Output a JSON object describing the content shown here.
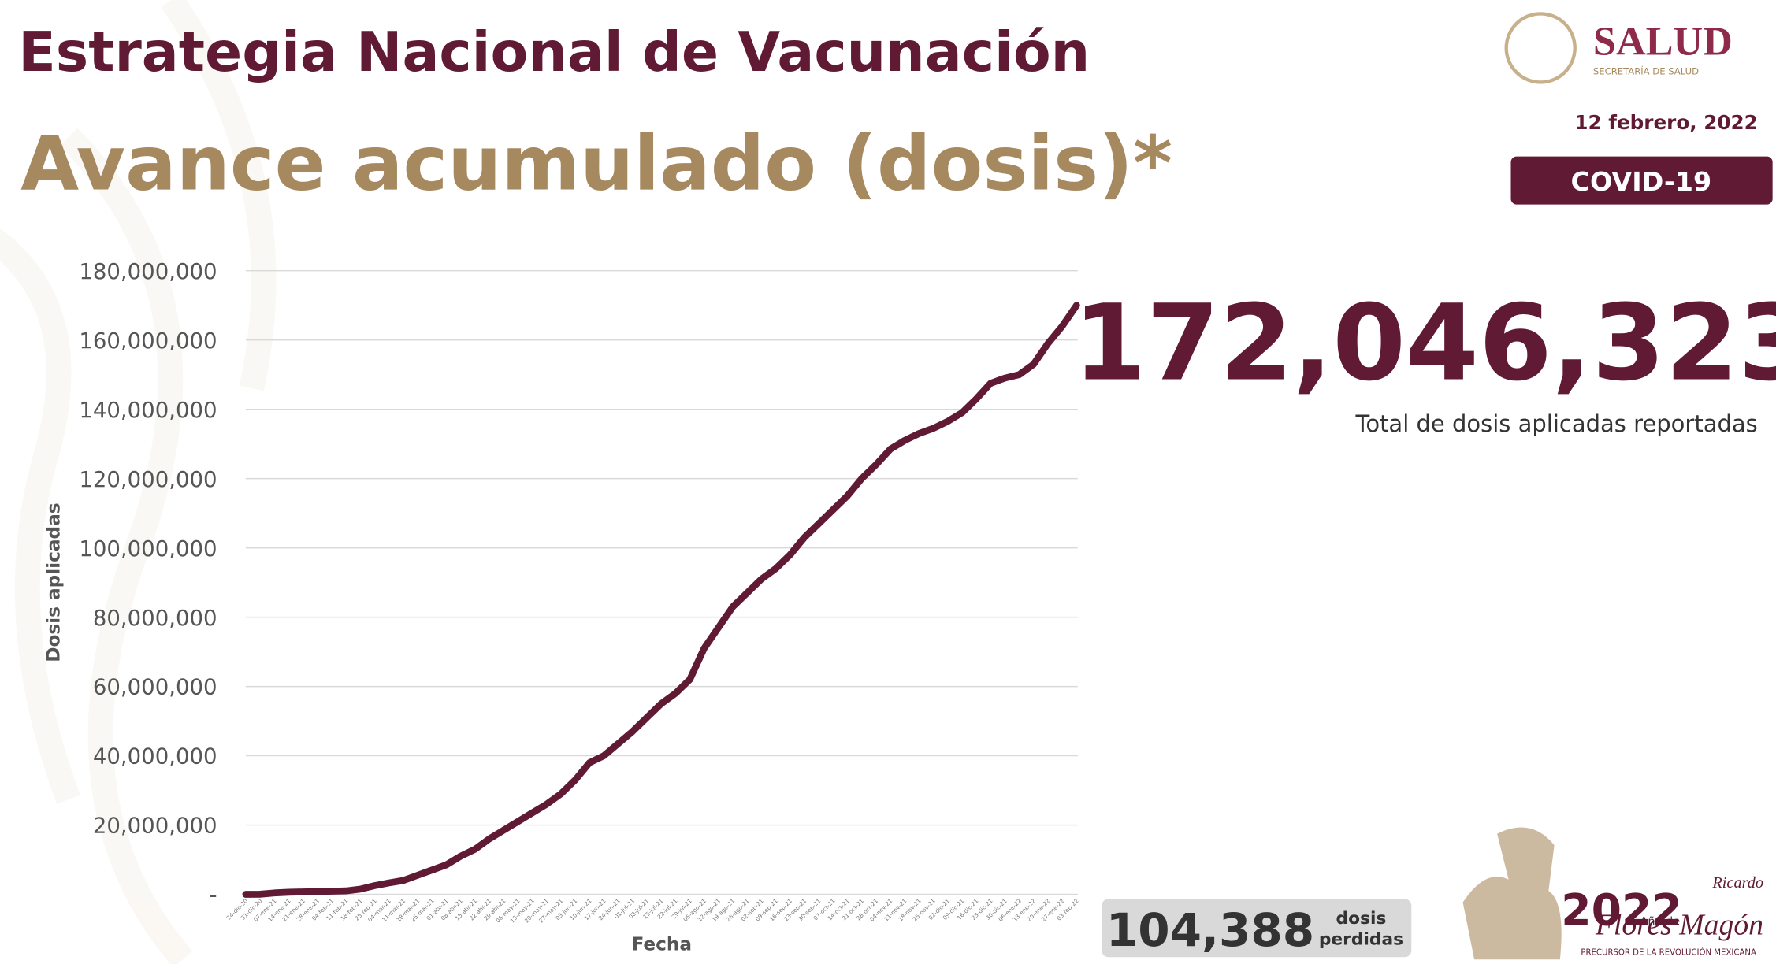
{
  "header": {
    "title": "Estrategia Nacional de Vacunación",
    "subtitle": "Avance acumulado (dosis)*",
    "date": "12 febrero, 2022",
    "badge": "COVID-19",
    "logo": "SALUD",
    "logo_sub": "SECRETARÍA DE SALUD"
  },
  "kpi": {
    "total": "172,046,323",
    "total_label": "Total de dosis aplicadas reportadas",
    "lost": "104,388",
    "lost_label": [
      "dosis",
      "perdidas"
    ]
  },
  "footer": {
    "year": "2022",
    "year_prefix": "Año de",
    "name_first": "Ricardo",
    "name_last": "Flores Magón",
    "tagline": "PRECURSOR DE LA REVOLUCIÓN MEXICANA"
  },
  "chart_data": {
    "type": "line",
    "x_label": "Fecha",
    "y_label": "Dosis aplicadas",
    "color": "#611a34",
    "grid": true,
    "categories": [
      "24-dic-20",
      "31-dic-20",
      "07-ene-21",
      "14-ene-21",
      "21-ene-21",
      "28-ene-21",
      "04-feb-21",
      "11-feb-21",
      "18-feb-21",
      "25-feb-21",
      "04-mar-21",
      "11-mar-21",
      "18-mar-21",
      "25-mar-21",
      "01-abr-21",
      "08-abr-21",
      "15-abr-21",
      "22-abr-21",
      "29-abr-21",
      "06-may-21",
      "13-may-21",
      "20-may-21",
      "27-may-21",
      "03-jun-21",
      "10-jun-21",
      "17-jun-21",
      "24-jun-21",
      "01-jul-21",
      "08-jul-21",
      "15-jul-21",
      "22-jul-21",
      "29-jul-21",
      "05-ago-21",
      "12-ago-21",
      "19-ago-21",
      "26-ago-21",
      "02-sep-21",
      "09-sep-21",
      "16-sep-21",
      "23-sep-21",
      "30-sep-21",
      "07-oct-21",
      "14-oct-21",
      "21-oct-21",
      "28-oct-21",
      "04-nov-21",
      "11-nov-21",
      "18-nov-21",
      "25-nov-21",
      "02-dic-21",
      "09-dic-21",
      "16-dic-21",
      "23-dic-21",
      "30-dic-21",
      "06-ene-22",
      "13-ene-22",
      "20-ene-22",
      "27-ene-22",
      "03-feb-22"
    ],
    "values": [
      10000,
      40000,
      400000,
      600000,
      700000,
      800000,
      900000,
      1000000,
      1500000,
      2500000,
      3300000,
      4000000,
      5500000,
      7000000,
      8500000,
      11000000,
      13000000,
      16000000,
      18500000,
      21000000,
      23500000,
      26000000,
      29000000,
      33000000,
      38000000,
      40000000,
      43500000,
      47000000,
      51000000,
      55000000,
      58000000,
      62000000,
      71000000,
      77000000,
      83000000,
      87000000,
      91000000,
      94000000,
      98000000,
      103000000,
      107000000,
      111000000,
      115000000,
      120000000,
      124000000,
      128500000,
      131000000,
      133000000,
      134500000,
      136500000,
      139000000,
      143000000,
      147500000,
      149000000,
      150000000,
      153000000,
      159000000,
      164000000,
      170000000
    ],
    "ylim": [
      0,
      180000000
    ],
    "yticks": [
      {
        "value": 0,
        "label": "-"
      },
      {
        "value": 20000000,
        "label": "20,000,000"
      },
      {
        "value": 40000000,
        "label": "40,000,000"
      },
      {
        "value": 60000000,
        "label": "60,000,000"
      },
      {
        "value": 80000000,
        "label": "80,000,000"
      },
      {
        "value": 100000000,
        "label": "100,000,000"
      },
      {
        "value": 120000000,
        "label": "120,000,000"
      },
      {
        "value": 140000000,
        "label": "140,000,000"
      },
      {
        "value": 160000000,
        "label": "160,000,000"
      },
      {
        "value": 180000000,
        "label": "180,000,000"
      }
    ]
  }
}
